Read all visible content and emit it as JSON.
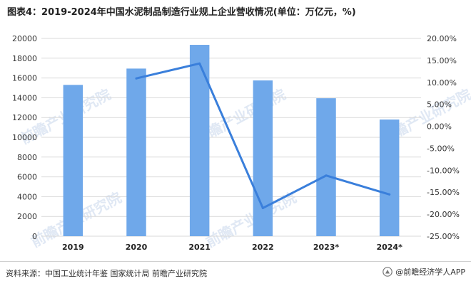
{
  "title": "图表4：2019-2024年中国水泥制品制造行业规上企业营收情况(单位：万亿元，%)",
  "source": "资料来源：中国工业统计年鉴 国家统计局 前瞻产业研究院",
  "brand": "@前瞻经济学人APP",
  "watermark": "前瞻产业研究院",
  "colors": {
    "bar": "#6fa8ea",
    "line": "#3a7fdb",
    "grid": "#d9d9d9",
    "watermark": "#c7d7ec"
  },
  "icons": {
    "brand": "brand-logo-icon"
  },
  "chart_data": {
    "type": "bar",
    "categories": [
      "2019",
      "2020",
      "2021",
      "2022",
      "2023*",
      "2024*"
    ],
    "series": [
      {
        "type": "bar",
        "axis": "left",
        "values": [
          15300,
          16950,
          19350,
          15750,
          13950,
          11800
        ]
      },
      {
        "type": "line",
        "axis": "right",
        "values": [
          null,
          0.109,
          0.143,
          -0.186,
          -0.112,
          -0.155
        ]
      }
    ],
    "y_left": {
      "min": 0,
      "max": 20000,
      "step": 2000,
      "ticks": [
        "0",
        "2000",
        "4000",
        "6000",
        "8000",
        "10000",
        "12000",
        "14000",
        "16000",
        "18000",
        "20000"
      ]
    },
    "y_right": {
      "min": -0.25,
      "max": 0.2,
      "step": 0.05,
      "ticks": [
        "-25.00%",
        "-20.00%",
        "-15.00%",
        "-10.00%",
        "-5.00%",
        "0.00%",
        "5.00%",
        "10.00%",
        "15.00%",
        "20.00%"
      ]
    },
    "grid": true,
    "legend": "none"
  }
}
